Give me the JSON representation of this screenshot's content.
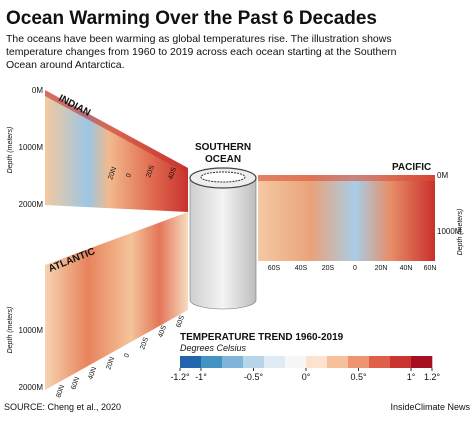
{
  "header": {
    "title": "Ocean Warming Over the Past 6 Decades",
    "subtitle_lines": [
      "The oceans have been warming as global temperatures rise. The illustration shows",
      "temperature changes from 1960 to 2019 across each ocean starting at the Southern",
      "Ocean around Antarctica."
    ]
  },
  "panels": {
    "indian": {
      "label": "INDIAN",
      "depth_axis": "Depth (meters)",
      "depths": [
        "0M",
        "1000M",
        "2000M"
      ],
      "latitudes": [
        "20N",
        "0",
        "20S",
        "40S"
      ]
    },
    "southern": {
      "label_lines": [
        "SOUTHERN",
        "OCEAN"
      ]
    },
    "pacific": {
      "label": "PACIFIC",
      "depth_axis": "Depth (meters)",
      "depths": [
        "0M",
        "1000M"
      ],
      "latitudes": [
        "60S",
        "40S",
        "20S",
        "0",
        "20N",
        "40N",
        "60N"
      ]
    },
    "atlantic": {
      "label": "ATLANTIC",
      "depth_axis": "Depth (meters)",
      "depths": [
        "1000M",
        "2000M"
      ],
      "latitudes": [
        "80N",
        "60N",
        "40N",
        "20N",
        "0",
        "20S",
        "40S",
        "60S"
      ]
    }
  },
  "legend": {
    "title": "TEMPERATURE TREND 1960-2019",
    "subtitle": "Degrees Celsius",
    "ticks": [
      "-1.2°",
      "-1°",
      "-0.5°",
      "0°",
      "0.5°",
      "1°",
      "1.2°"
    ]
  },
  "footer": {
    "source": "SOURCE: Cheng et al., 2020",
    "credit": "InsideClimate News"
  }
}
